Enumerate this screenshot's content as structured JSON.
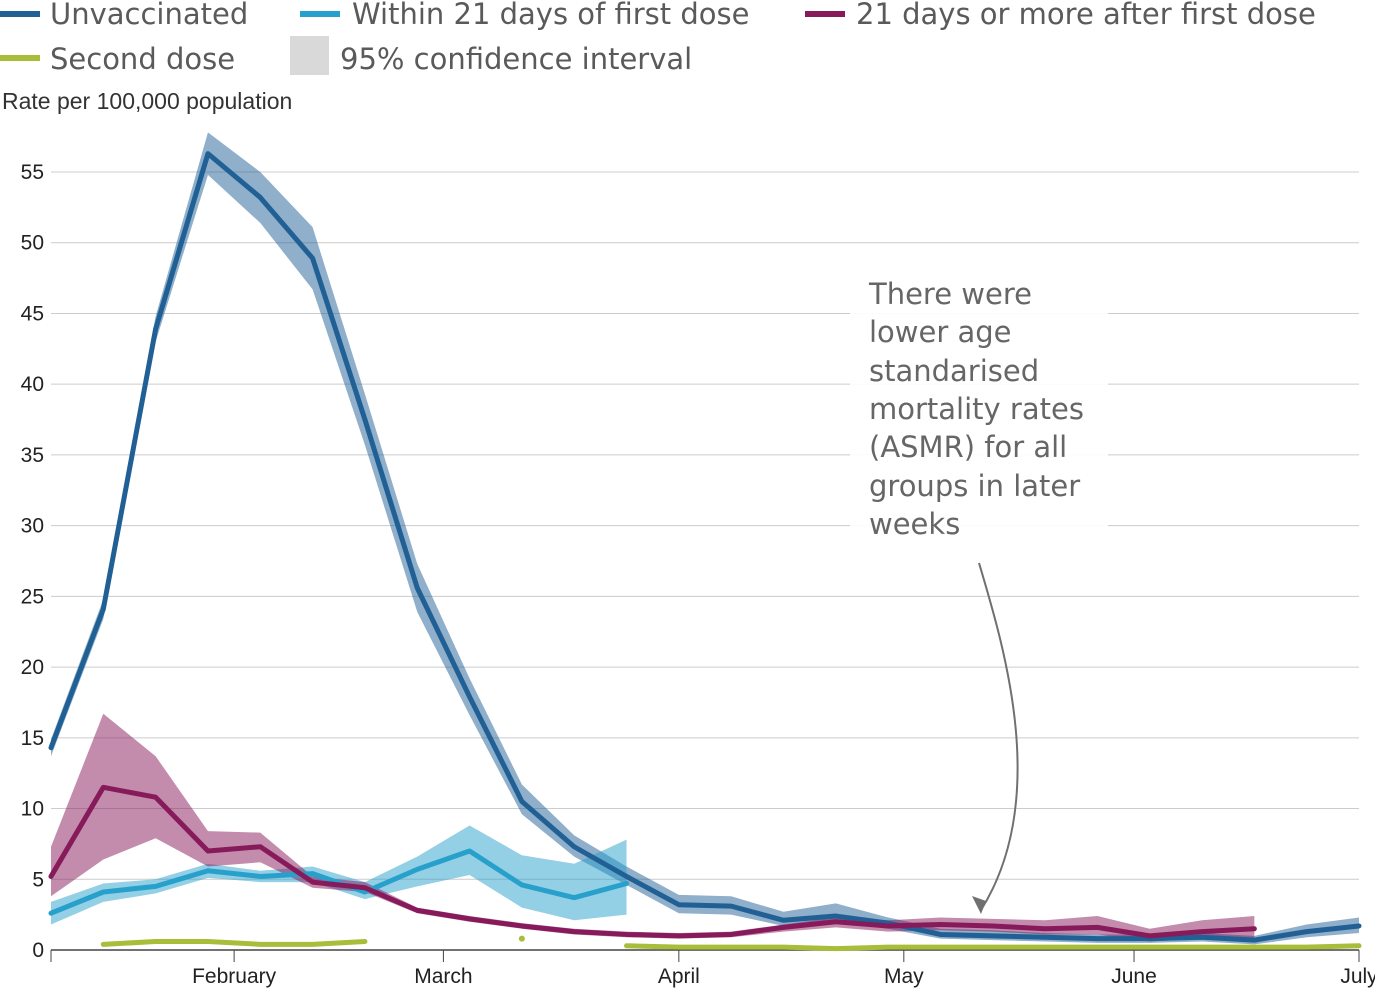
{
  "chart_data": {
    "type": "line",
    "title": "",
    "ylabel": "Rate per 100,000 population",
    "xlabel": "",
    "ylim": [
      0,
      55
    ],
    "yticks": [
      0,
      5,
      10,
      15,
      20,
      25,
      30,
      35,
      40,
      45,
      50,
      55
    ],
    "week_range": [
      0,
      25
    ],
    "month_ticks": [
      {
        "label": "February",
        "week": 3.5
      },
      {
        "label": "March",
        "week": 7.5
      },
      {
        "label": "April",
        "week": 12
      },
      {
        "label": "May",
        "week": 16.3
      },
      {
        "label": "June",
        "week": 20.7
      },
      {
        "label": "July",
        "week": 25
      }
    ],
    "legend": [
      {
        "label": "Unvaccinated",
        "color": "#206095",
        "kind": "line"
      },
      {
        "label": "Within 21 days of first dose",
        "color": "#27a0cc",
        "kind": "line"
      },
      {
        "label": "21 days or more after first dose",
        "color": "#871a5b",
        "kind": "line"
      },
      {
        "label": "Second dose",
        "color": "#a8bd3a",
        "kind": "line"
      },
      {
        "label": "95% confidence interval",
        "color": "#d9d9d9",
        "kind": "area"
      }
    ],
    "series": [
      {
        "name": "Unvaccinated",
        "color": "#206095",
        "band_color": "#206095",
        "band_opacity": 0.5,
        "x": [
          0,
          1,
          2,
          3,
          4,
          5,
          6,
          7,
          8,
          9,
          10,
          11,
          12,
          13,
          14,
          15,
          16,
          17,
          18,
          19,
          20,
          21,
          22,
          23,
          24,
          25
        ],
        "values": [
          14.3,
          24.1,
          43.9,
          56.3,
          53.2,
          48.9,
          37.5,
          25.6,
          17.9,
          10.5,
          7.3,
          5.2,
          3.2,
          3.1,
          2.1,
          2.4,
          1.9,
          1.1,
          1.0,
          0.9,
          0.8,
          0.8,
          0.9,
          0.7,
          1.3,
          1.7
        ],
        "lower": [
          13.7,
          23.4,
          43.0,
          54.8,
          51.4,
          46.7,
          35.7,
          23.9,
          16.6,
          9.6,
          6.6,
          4.6,
          2.6,
          2.5,
          1.7,
          2.0,
          1.5,
          0.8,
          0.7,
          0.6,
          0.5,
          0.5,
          0.6,
          0.4,
          0.9,
          1.2
        ],
        "upper": [
          14.9,
          24.8,
          44.8,
          57.8,
          55.0,
          51.1,
          39.3,
          27.3,
          19.2,
          11.7,
          8.1,
          5.9,
          3.9,
          3.8,
          2.7,
          3.3,
          2.3,
          1.5,
          1.4,
          1.2,
          1.1,
          1.1,
          1.2,
          1.0,
          1.8,
          2.3
        ]
      },
      {
        "name": "Within 21 days of first dose",
        "color": "#27a0cc",
        "band_color": "#27a0cc",
        "band_opacity": 0.5,
        "x": [
          0,
          1,
          2,
          3,
          4,
          5,
          6,
          7,
          8,
          9,
          10,
          11
        ],
        "values": [
          2.6,
          4.1,
          4.5,
          5.6,
          5.2,
          5.4,
          4.1,
          5.7,
          7.0,
          4.6,
          3.7,
          4.7
        ],
        "lower": [
          1.8,
          3.4,
          4.0,
          5.1,
          4.8,
          4.8,
          3.6,
          4.5,
          5.3,
          3.0,
          2.1,
          2.5
        ],
        "upper": [
          3.4,
          4.7,
          5.0,
          6.1,
          5.6,
          5.9,
          4.8,
          6.6,
          8.8,
          6.7,
          6.1,
          7.8
        ]
      },
      {
        "name": "21 days or more after first dose",
        "color": "#871a5b",
        "band_color": "#871a5b",
        "band_opacity": 0.5,
        "x": [
          0,
          1,
          2,
          3,
          4,
          5,
          6,
          7,
          8,
          9,
          10,
          11,
          12,
          13,
          14,
          15,
          16,
          17,
          18,
          19,
          20,
          21,
          22,
          23
        ],
        "values": [
          5.2,
          11.5,
          10.8,
          7.0,
          7.3,
          4.8,
          4.4,
          2.8,
          2.2,
          1.7,
          1.3,
          1.1,
          1.0,
          1.1,
          1.6,
          2.0,
          1.7,
          1.8,
          1.7,
          1.5,
          1.6,
          1.0,
          1.3,
          1.5
        ],
        "lower": [
          3.8,
          6.4,
          7.9,
          5.9,
          6.2,
          4.4,
          4.1,
          2.6,
          2.0,
          1.5,
          1.1,
          0.9,
          0.8,
          0.9,
          1.3,
          1.6,
          1.3,
          1.4,
          1.3,
          1.1,
          1.1,
          0.6,
          0.8,
          0.8
        ],
        "upper": [
          7.3,
          16.7,
          13.7,
          8.4,
          8.3,
          5.2,
          4.8,
          3.0,
          2.4,
          1.9,
          1.5,
          1.3,
          1.2,
          1.3,
          1.8,
          2.3,
          2.1,
          2.3,
          2.2,
          2.1,
          2.4,
          1.5,
          2.1,
          2.4
        ]
      },
      {
        "name": "Second dose",
        "color": "#a8bd3a",
        "segments": [
          {
            "x": [
              1,
              2,
              3,
              4,
              5,
              6
            ],
            "values": [
              0.4,
              0.6,
              0.6,
              0.4,
              0.4,
              0.6
            ]
          },
          {
            "x": [
              9
            ],
            "values": [
              0.8
            ]
          },
          {
            "x": [
              11,
              12,
              13,
              14,
              15,
              16,
              17,
              18,
              19,
              20,
              21,
              22,
              23,
              24,
              25
            ],
            "values": [
              0.3,
              0.2,
              0.2,
              0.2,
              0.1,
              0.2,
              0.2,
              0.2,
              0.2,
              0.2,
              0.2,
              0.2,
              0.2,
              0.2,
              0.3
            ]
          }
        ]
      }
    ],
    "annotation": {
      "lines": [
        "There were",
        "lower age",
        "standarised",
        "mortality rates",
        "(ASMR) for all",
        "groups in later",
        "weeks"
      ]
    }
  }
}
